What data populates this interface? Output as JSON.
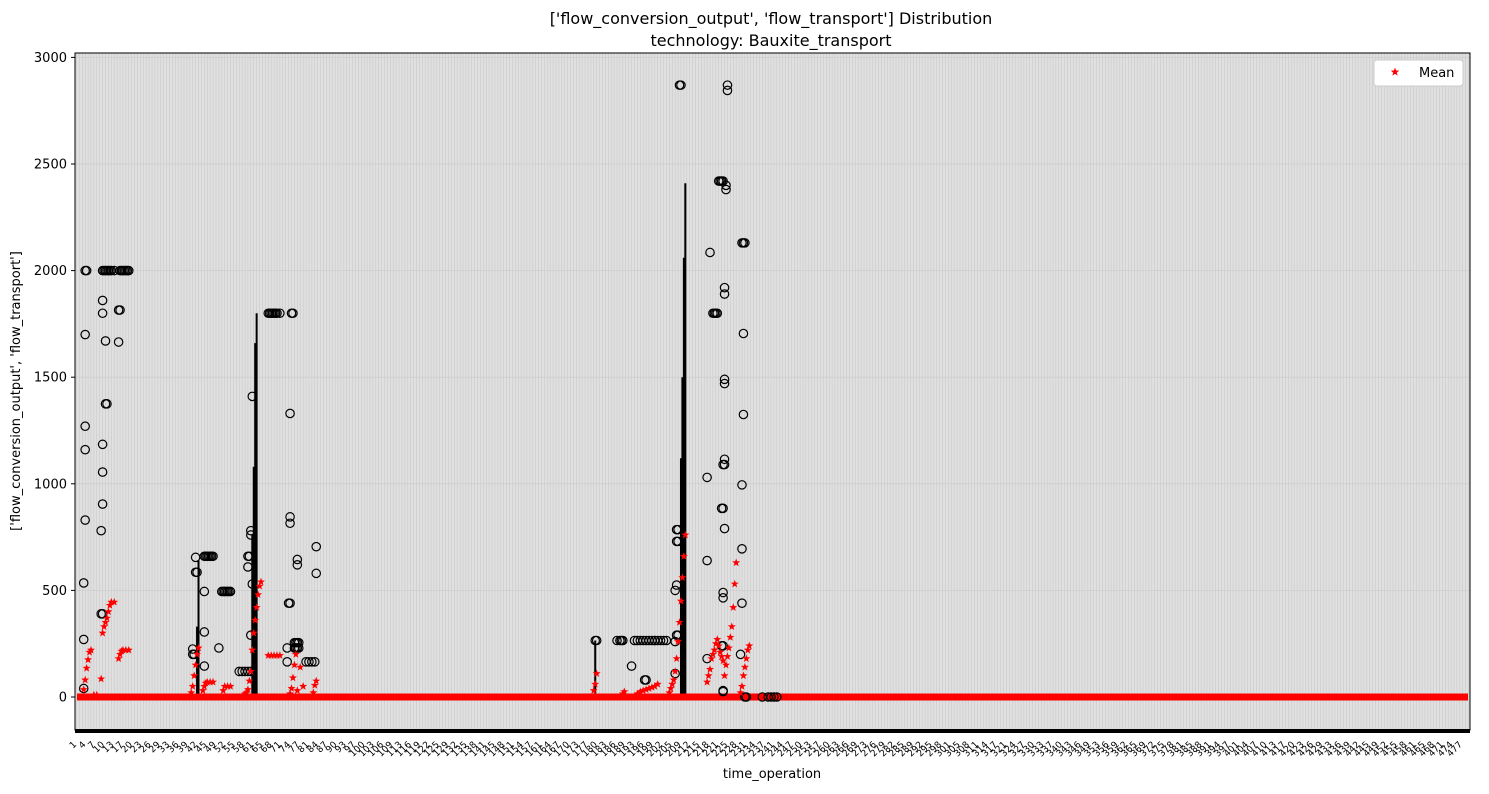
{
  "chart_data": {
    "type": "box",
    "title_line1": "['flow_conversion_output', 'flow_transport'] Distribution",
    "title_line2": "technology: Bauxite_transport",
    "xlabel": "time_operation",
    "ylabel": "['flow_conversion_output', 'flow_transport']",
    "ylim": [
      -150,
      3020
    ],
    "yticks": [
      0,
      500,
      1000,
      1500,
      2000,
      2500,
      3000
    ],
    "n_categories": 480,
    "grid": true,
    "legend": {
      "position": "top-right",
      "entries": [
        {
          "label": "Mean",
          "marker": "star",
          "color": "#ff0000"
        }
      ]
    },
    "mean_baseline": 0,
    "means": [
      [
        2.5,
        35
      ],
      [
        3,
        80
      ],
      [
        3.5,
        135
      ],
      [
        4,
        175
      ],
      [
        4.5,
        210
      ],
      [
        5,
        220
      ],
      [
        6,
        10
      ],
      [
        7,
        10
      ],
      [
        8.5,
        85
      ],
      [
        9,
        300
      ],
      [
        9.5,
        330
      ],
      [
        10,
        350
      ],
      [
        10.5,
        370
      ],
      [
        11,
        400
      ],
      [
        11.5,
        430
      ],
      [
        12,
        445
      ],
      [
        13,
        445
      ],
      [
        14.5,
        180
      ],
      [
        15,
        200
      ],
      [
        15.5,
        215
      ],
      [
        16,
        220
      ],
      [
        17,
        220
      ],
      [
        18,
        220
      ],
      [
        39.5,
        20
      ],
      [
        40,
        50
      ],
      [
        40.5,
        100
      ],
      [
        41,
        150
      ],
      [
        41.5,
        200
      ],
      [
        42,
        230
      ],
      [
        43.5,
        30
      ],
      [
        44,
        50
      ],
      [
        44.5,
        65
      ],
      [
        45,
        70
      ],
      [
        46,
        70
      ],
      [
        47,
        70
      ],
      [
        50.5,
        30
      ],
      [
        51,
        50
      ],
      [
        52,
        50
      ],
      [
        53,
        50
      ],
      [
        58,
        15
      ],
      [
        58.5,
        20
      ],
      [
        59,
        35
      ],
      [
        59.5,
        75
      ],
      [
        60,
        120
      ],
      [
        60.5,
        220
      ],
      [
        61,
        300
      ],
      [
        61.5,
        360
      ],
      [
        62,
        420
      ],
      [
        62.5,
        480
      ],
      [
        63,
        520
      ],
      [
        63.5,
        540
      ],
      [
        66,
        195
      ],
      [
        67,
        195
      ],
      [
        68,
        195
      ],
      [
        69,
        195
      ],
      [
        70,
        195
      ],
      [
        73.5,
        15
      ],
      [
        74,
        40
      ],
      [
        74.5,
        90
      ],
      [
        75,
        150
      ],
      [
        75.5,
        200
      ],
      [
        76,
        30
      ],
      [
        77,
        140
      ],
      [
        78,
        50
      ],
      [
        81.5,
        20
      ],
      [
        82,
        55
      ],
      [
        82.5,
        75
      ],
      [
        178,
        30
      ],
      [
        178.5,
        60
      ],
      [
        179,
        110
      ],
      [
        188,
        15
      ],
      [
        188.5,
        25
      ],
      [
        193,
        15
      ],
      [
        194,
        25
      ],
      [
        195,
        30
      ],
      [
        196,
        35
      ],
      [
        197,
        40
      ],
      [
        198,
        45
      ],
      [
        199,
        50
      ],
      [
        200,
        60
      ],
      [
        204,
        20
      ],
      [
        204.5,
        40
      ],
      [
        205,
        60
      ],
      [
        205.5,
        80
      ],
      [
        206,
        120
      ],
      [
        206.5,
        180
      ],
      [
        207,
        260
      ],
      [
        207.5,
        350
      ],
      [
        208,
        450
      ],
      [
        208.5,
        560
      ],
      [
        209,
        660
      ],
      [
        209.5,
        760
      ],
      [
        217,
        70
      ],
      [
        217.5,
        100
      ],
      [
        218,
        130
      ],
      [
        218.5,
        180
      ],
      [
        219,
        200
      ],
      [
        219.5,
        220
      ],
      [
        220,
        250
      ],
      [
        220.5,
        270
      ],
      [
        221,
        240
      ],
      [
        221.5,
        210
      ],
      [
        222,
        190
      ],
      [
        222.5,
        170
      ],
      [
        223,
        100
      ],
      [
        223.5,
        150
      ],
      [
        224,
        190
      ],
      [
        224.5,
        230
      ],
      [
        225,
        280
      ],
      [
        225.5,
        330
      ],
      [
        226,
        420
      ],
      [
        226.5,
        530
      ],
      [
        227,
        630
      ],
      [
        228.5,
        20
      ],
      [
        229,
        50
      ],
      [
        229.5,
        100
      ],
      [
        230,
        140
      ],
      [
        230.5,
        180
      ],
      [
        231,
        220
      ],
      [
        231.5,
        240
      ]
    ],
    "fliers": [
      [
        3,
        2000
      ],
      [
        3.5,
        2000
      ],
      [
        3,
        1700
      ],
      [
        3,
        1270
      ],
      [
        3,
        1160
      ],
      [
        3,
        830
      ],
      [
        2.5,
        535
      ],
      [
        2.5,
        270
      ],
      [
        2.5,
        40
      ],
      [
        9,
        2000
      ],
      [
        9.5,
        2000
      ],
      [
        10,
        2000
      ],
      [
        10.5,
        2000
      ],
      [
        11,
        2000
      ],
      [
        11.5,
        2000
      ],
      [
        12,
        2000
      ],
      [
        13,
        2000
      ],
      [
        9,
        1860
      ],
      [
        9,
        1800
      ],
      [
        10,
        1670
      ],
      [
        10,
        1375
      ],
      [
        10.5,
        1375
      ],
      [
        9,
        1185
      ],
      [
        9,
        1055
      ],
      [
        9,
        905
      ],
      [
        8.5,
        780
      ],
      [
        8.5,
        390
      ],
      [
        9,
        390
      ],
      [
        15,
        2000
      ],
      [
        15.5,
        2000
      ],
      [
        16,
        2000
      ],
      [
        16.5,
        2000
      ],
      [
        17,
        2000
      ],
      [
        17.5,
        2000
      ],
      [
        18,
        2000
      ],
      [
        14.5,
        1815
      ],
      [
        15,
        1815
      ],
      [
        14.5,
        1665
      ],
      [
        41,
        655
      ],
      [
        41,
        585
      ],
      [
        41.5,
        585
      ],
      [
        40,
        225
      ],
      [
        40,
        200
      ],
      [
        40.5,
        200
      ],
      [
        44,
        660
      ],
      [
        44.5,
        660
      ],
      [
        45,
        660
      ],
      [
        45.5,
        660
      ],
      [
        46,
        660
      ],
      [
        46.5,
        660
      ],
      [
        47,
        660
      ],
      [
        44,
        495
      ],
      [
        44,
        305
      ],
      [
        44,
        145
      ],
      [
        49,
        230
      ],
      [
        50,
        495
      ],
      [
        50.5,
        495
      ],
      [
        51,
        495
      ],
      [
        51.5,
        495
      ],
      [
        52,
        495
      ],
      [
        52.5,
        495
      ],
      [
        53,
        495
      ],
      [
        56,
        120
      ],
      [
        57,
        120
      ],
      [
        58,
        120
      ],
      [
        59,
        120
      ],
      [
        60,
        120
      ],
      [
        59,
        660
      ],
      [
        59.5,
        660
      ],
      [
        59,
        610
      ],
      [
        60,
        780
      ],
      [
        60,
        760
      ],
      [
        60.5,
        1410
      ],
      [
        60.5,
        530
      ],
      [
        60,
        290
      ],
      [
        66,
        1800
      ],
      [
        66.5,
        1800
      ],
      [
        67,
        1800
      ],
      [
        67.5,
        1800
      ],
      [
        68,
        1800
      ],
      [
        68.5,
        1800
      ],
      [
        69,
        1800
      ],
      [
        70,
        1800
      ],
      [
        74,
        1800
      ],
      [
        74.5,
        1800
      ],
      [
        73.5,
        1330
      ],
      [
        73.5,
        845
      ],
      [
        73.5,
        815
      ],
      [
        73,
        440
      ],
      [
        73.5,
        440
      ],
      [
        72.5,
        230
      ],
      [
        72.5,
        165
      ],
      [
        75,
        255
      ],
      [
        75.5,
        255
      ],
      [
        76,
        255
      ],
      [
        76.5,
        255
      ],
      [
        75,
        230
      ],
      [
        75.5,
        230
      ],
      [
        76,
        230
      ],
      [
        76.5,
        230
      ],
      [
        76,
        645
      ],
      [
        76,
        620
      ],
      [
        79,
        165
      ],
      [
        80,
        165
      ],
      [
        81,
        165
      ],
      [
        82,
        165
      ],
      [
        82.5,
        705
      ],
      [
        82.5,
        580
      ],
      [
        178.5,
        265
      ],
      [
        179,
        265
      ],
      [
        186,
        265
      ],
      [
        187,
        265
      ],
      [
        187.5,
        265
      ],
      [
        188,
        265
      ],
      [
        191,
        145
      ],
      [
        192,
        265
      ],
      [
        193,
        265
      ],
      [
        194,
        265
      ],
      [
        195,
        265
      ],
      [
        196,
        265
      ],
      [
        197,
        265
      ],
      [
        198,
        265
      ],
      [
        199,
        265
      ],
      [
        199,
        265
      ],
      [
        200,
        265
      ],
      [
        201,
        265
      ],
      [
        202,
        265
      ],
      [
        203,
        265
      ],
      [
        195.5,
        80
      ],
      [
        196,
        80
      ],
      [
        206.5,
        290
      ],
      [
        207,
        290
      ],
      [
        206,
        260
      ],
      [
        206,
        110
      ],
      [
        206,
        500
      ],
      [
        206.5,
        525
      ],
      [
        206.5,
        730
      ],
      [
        207,
        730
      ],
      [
        206.5,
        785
      ],
      [
        207,
        785
      ],
      [
        207.5,
        2870
      ],
      [
        208,
        2870
      ],
      [
        217,
        1030
      ],
      [
        217,
        640
      ],
      [
        217,
        180
      ],
      [
        218,
        2085
      ],
      [
        219,
        1800
      ],
      [
        219.5,
        1800
      ],
      [
        220,
        1800
      ],
      [
        220.5,
        1800
      ],
      [
        221,
        2420
      ],
      [
        221.5,
        2420
      ],
      [
        222,
        2420
      ],
      [
        222.5,
        2420
      ],
      [
        223,
        1890
      ],
      [
        223,
        1920
      ],
      [
        223,
        1490
      ],
      [
        223,
        1470
      ],
      [
        223,
        1115
      ],
      [
        222.5,
        1090
      ],
      [
        223,
        1090
      ],
      [
        222,
        885
      ],
      [
        222.5,
        885
      ],
      [
        223,
        790
      ],
      [
        222.5,
        490
      ],
      [
        222.5,
        465
      ],
      [
        222,
        240
      ],
      [
        222.5,
        240
      ],
      [
        222.5,
        25
      ],
      [
        222.5,
        30
      ],
      [
        224,
        2870
      ],
      [
        224,
        2845
      ],
      [
        223.5,
        2400
      ],
      [
        223.5,
        2380
      ],
      [
        229,
        2130
      ],
      [
        229.5,
        2130
      ],
      [
        230,
        2130
      ],
      [
        229.5,
        1705
      ],
      [
        229.5,
        1325
      ],
      [
        229,
        995
      ],
      [
        229,
        695
      ],
      [
        229,
        440
      ],
      [
        228.5,
        200
      ],
      [
        230,
        0
      ],
      [
        230.5,
        0
      ],
      [
        236,
        0
      ],
      [
        238,
        0
      ],
      [
        239,
        0
      ],
      [
        240,
        0
      ],
      [
        241,
        0
      ]
    ],
    "whiskers": [
      [
        41.5,
        0,
        330
      ],
      [
        42,
        0,
        640
      ],
      [
        60.5,
        0,
        760
      ],
      [
        61,
        0,
        1080
      ],
      [
        61.5,
        0,
        1660
      ],
      [
        62,
        0,
        1800
      ],
      [
        178.5,
        0,
        265
      ],
      [
        208,
        0,
        1120
      ],
      [
        208.5,
        0,
        1500
      ],
      [
        209,
        0,
        2060
      ],
      [
        209.5,
        0,
        2410
      ]
    ]
  }
}
